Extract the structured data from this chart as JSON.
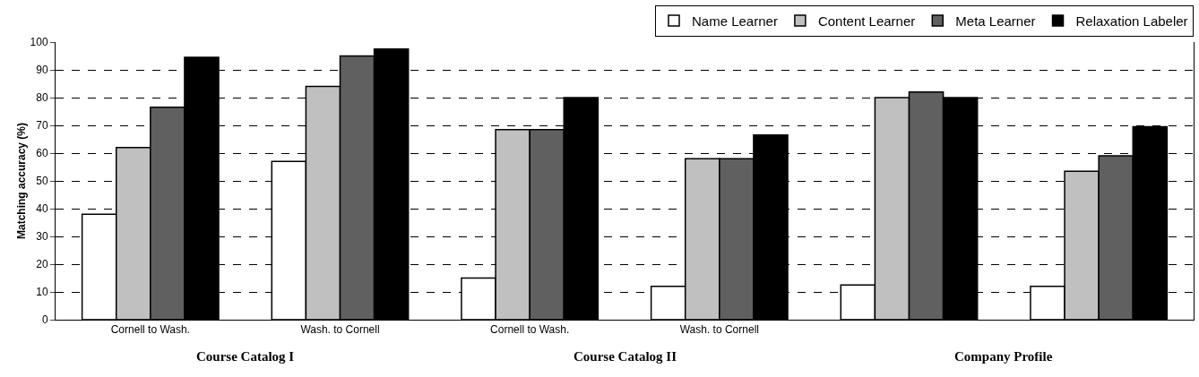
{
  "chart_data": {
    "type": "bar",
    "ylabel": "Matching accuracy (%)",
    "categories": [
      "Cornell to Wash.",
      "Wash. to Cornell",
      "Cornell to Wash.",
      "Wash. to Cornell",
      null,
      null
    ],
    "series": [
      {
        "name": "Name Learner",
        "color": "#ffffff",
        "values": [
          38,
          57,
          15,
          12,
          12.5,
          12
        ]
      },
      {
        "name": "Content Learner",
        "color": "#c0c0c0",
        "values": [
          62,
          84,
          68.5,
          58,
          80,
          53.5
        ]
      },
      {
        "name": "Meta Learner",
        "color": "#606060",
        "values": [
          76.5,
          95,
          68.5,
          58,
          82,
          59
        ]
      },
      {
        "name": "Relaxation Labeler",
        "color": "#000000",
        "values": [
          94.5,
          97.5,
          80,
          66.5,
          80,
          69.5
        ]
      }
    ],
    "annotations": [
      "Course Catalog I",
      "Course Catalog II",
      "Company Profile"
    ],
    "ylim": [
      0,
      100
    ],
    "yticks": [
      0,
      10,
      20,
      30,
      40,
      50,
      60,
      70,
      80,
      90,
      100
    ],
    "grid": "y",
    "legend": "top right"
  }
}
